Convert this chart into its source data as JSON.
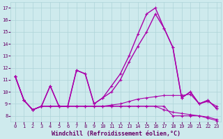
{
  "background_color": "#ceeaed",
  "line_color": "#aa00aa",
  "grid_color": "#aed4d8",
  "xlabel": "Windchill (Refroidissement éolien,°C)",
  "xlabel_color": "#660066",
  "tick_color": "#660066",
  "xlim": [
    -0.5,
    23.5
  ],
  "ylim": [
    7.5,
    17.5
  ],
  "yticks": [
    8,
    9,
    10,
    11,
    12,
    13,
    14,
    15,
    16,
    17
  ],
  "xticks": [
    0,
    1,
    2,
    3,
    4,
    5,
    6,
    7,
    8,
    9,
    10,
    11,
    12,
    13,
    14,
    15,
    16,
    17,
    18,
    19,
    20,
    21,
    22,
    23
  ],
  "series": [
    [
      11.3,
      9.3,
      8.5,
      8.8,
      10.5,
      8.8,
      8.8,
      11.8,
      11.5,
      9.0,
      9.5,
      10.5,
      11.5,
      13.0,
      14.8,
      16.5,
      17.0,
      15.3,
      13.7,
      9.5,
      10.0,
      9.0,
      9.3,
      8.6
    ],
    [
      11.3,
      9.3,
      8.5,
      8.8,
      10.5,
      8.8,
      8.8,
      11.8,
      11.5,
      9.0,
      9.5,
      10.0,
      11.0,
      12.5,
      13.8,
      15.0,
      16.5,
      15.3,
      13.7,
      9.5,
      10.0,
      9.0,
      9.3,
      8.6
    ],
    [
      11.3,
      9.3,
      8.5,
      8.8,
      8.8,
      8.8,
      8.8,
      8.8,
      8.8,
      8.8,
      8.8,
      8.8,
      8.8,
      8.8,
      8.8,
      8.8,
      8.8,
      8.8,
      8.0,
      8.0,
      8.0,
      8.0,
      7.8,
      7.6
    ],
    [
      11.3,
      9.3,
      8.5,
      8.8,
      8.8,
      8.8,
      8.8,
      8.8,
      8.8,
      8.8,
      8.8,
      8.8,
      8.8,
      8.8,
      8.8,
      8.8,
      8.8,
      8.5,
      8.3,
      8.2,
      8.1,
      8.0,
      7.9,
      7.7
    ],
    [
      11.3,
      9.3,
      8.5,
      8.8,
      8.8,
      8.8,
      8.8,
      8.8,
      8.8,
      8.8,
      8.8,
      8.9,
      9.0,
      9.2,
      9.4,
      9.5,
      9.6,
      9.7,
      9.7,
      9.7,
      9.8,
      9.0,
      9.2,
      8.8
    ]
  ]
}
